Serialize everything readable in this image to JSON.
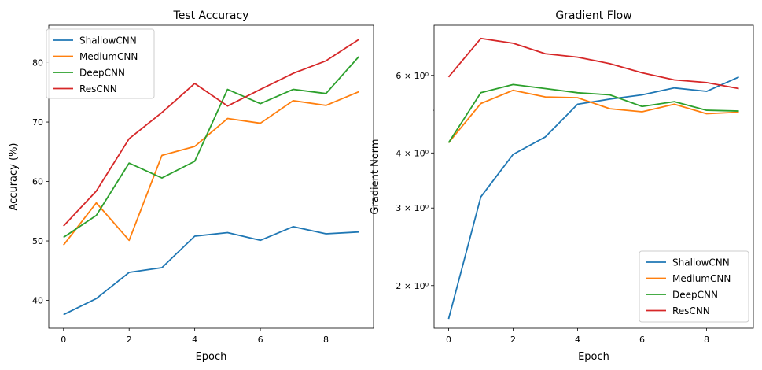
{
  "chart_data": [
    {
      "type": "line",
      "title": "Test Accuracy",
      "xlabel": "Epoch",
      "ylabel": "Accuracy (%)",
      "x": [
        0,
        1,
        2,
        3,
        4,
        5,
        6,
        7,
        8,
        9
      ],
      "xlim": [
        -0.45,
        9.45
      ],
      "ylim": [
        35.3,
        86.3
      ],
      "yscale": "linear",
      "xticks": [
        0,
        2,
        4,
        6,
        8
      ],
      "yticks": [
        40,
        50,
        60,
        70,
        80
      ],
      "xtick_labels": [
        "0",
        "2",
        "4",
        "6",
        "8"
      ],
      "ytick_labels": [
        "40",
        "50",
        "60",
        "70",
        "80"
      ],
      "grid": false,
      "legend_position": "top-left",
      "series": [
        {
          "name": "ShallowCNN",
          "color": "#1f77b4",
          "values": [
            37.6,
            40.3,
            44.7,
            45.5,
            50.8,
            51.4,
            50.1,
            52.4,
            51.2,
            51.5
          ]
        },
        {
          "name": "MediumCNN",
          "color": "#ff7f0e",
          "values": [
            49.3,
            56.4,
            50.1,
            64.4,
            65.9,
            70.6,
            69.8,
            73.6,
            72.8,
            75.1
          ]
        },
        {
          "name": "DeepCNN",
          "color": "#2ca02c",
          "values": [
            50.6,
            54.3,
            63.1,
            60.6,
            63.4,
            75.5,
            73.1,
            75.5,
            74.8,
            81.0
          ]
        },
        {
          "name": "ResCNN",
          "color": "#d62728",
          "values": [
            52.5,
            58.4,
            67.2,
            71.6,
            76.5,
            72.7,
            75.5,
            78.2,
            80.3,
            83.9
          ]
        }
      ]
    },
    {
      "type": "line",
      "title": "Gradient Flow",
      "xlabel": "Epoch",
      "ylabel": "Gradient Norm",
      "x": [
        0,
        1,
        2,
        3,
        4,
        5,
        6,
        7,
        8,
        9
      ],
      "xlim": [
        -0.45,
        9.45
      ],
      "ylim": [
        1.6,
        7.8
      ],
      "yscale": "log",
      "xticks": [
        0,
        2,
        4,
        6,
        8
      ],
      "yticks": [
        2,
        3,
        4,
        6
      ],
      "xtick_labels": [
        "0",
        "2",
        "4",
        "6",
        "8"
      ],
      "ytick_labels": [
        "2 × 10⁰",
        "3 × 10⁰",
        "4 × 10⁰",
        "6 × 10⁰"
      ],
      "yminor_ticks": [
        5,
        7
      ],
      "grid": false,
      "legend_position": "bottom-right",
      "series": [
        {
          "name": "ShallowCNN",
          "color": "#1f77b4",
          "values": [
            1.68,
            3.18,
            3.97,
            4.35,
            5.16,
            5.3,
            5.42,
            5.62,
            5.52,
            5.95
          ]
        },
        {
          "name": "MediumCNN",
          "color": "#ff7f0e",
          "values": [
            4.22,
            5.18,
            5.55,
            5.36,
            5.34,
            5.04,
            4.96,
            5.16,
            4.91,
            4.95
          ]
        },
        {
          "name": "DeepCNN",
          "color": "#2ca02c",
          "values": [
            4.22,
            5.48,
            5.72,
            5.6,
            5.48,
            5.42,
            5.1,
            5.23,
            5.0,
            4.98
          ]
        },
        {
          "name": "ResCNN",
          "color": "#d62728",
          "values": [
            5.95,
            7.28,
            7.1,
            6.72,
            6.6,
            6.38,
            6.08,
            5.86,
            5.78,
            5.6
          ]
        }
      ]
    }
  ]
}
